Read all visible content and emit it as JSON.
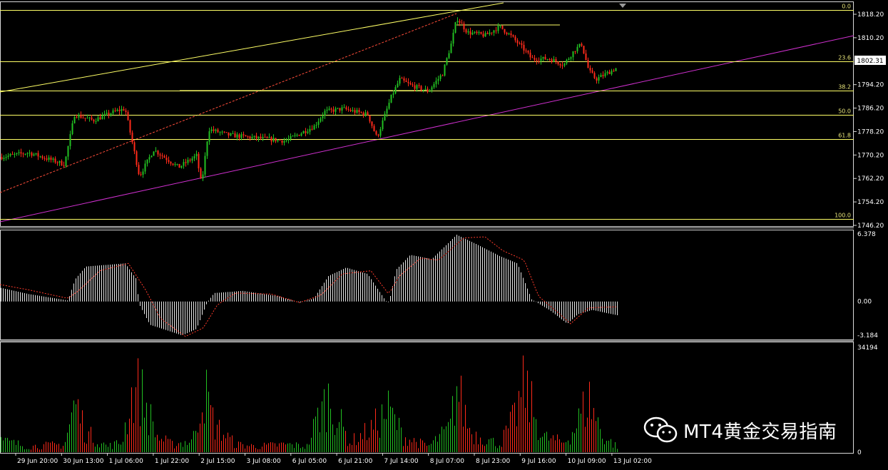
{
  "chart_data": {
    "type": "candlestick",
    "symbol_price_label": "1802.31",
    "price_axis": {
      "ticks": [
        "1818.20",
        "1810.20",
        "1802.31",
        "1794.20",
        "1786.20",
        "1778.20",
        "1770.20",
        "1762.20",
        "1754.20",
        "1746.20"
      ]
    },
    "fibonacci_levels": [
      {
        "label": "0.0",
        "price": 1819.6
      },
      {
        "label": "23.6",
        "price": 1802.2
      },
      {
        "label": "38.2",
        "price": 1792.2
      },
      {
        "label": "50.0",
        "price": 1784.0
      },
      {
        "label": "61.8",
        "price": 1775.7
      },
      {
        "label": "100.0",
        "price": 1748.3
      }
    ],
    "close_path": [
      [
        0,
        1769.5
      ],
      [
        40,
        1771
      ],
      [
        90,
        1767
      ],
      [
        104,
        1784
      ],
      [
        130,
        1782
      ],
      [
        160,
        1785
      ],
      [
        175,
        1786
      ],
      [
        195,
        1763
      ],
      [
        215,
        1772
      ],
      [
        250,
        1766
      ],
      [
        275,
        1770
      ],
      [
        282,
        1760
      ],
      [
        292,
        1779
      ],
      [
        320,
        1777
      ],
      [
        360,
        1776
      ],
      [
        400,
        1775
      ],
      [
        440,
        1780
      ],
      [
        455,
        1785
      ],
      [
        480,
        1786
      ],
      [
        515,
        1784
      ],
      [
        528,
        1776
      ],
      [
        548,
        1790
      ],
      [
        560,
        1796
      ],
      [
        575,
        1794
      ],
      [
        600,
        1792
      ],
      [
        620,
        1798
      ],
      [
        632,
        1808
      ],
      [
        640,
        1817
      ],
      [
        655,
        1812
      ],
      [
        680,
        1811
      ],
      [
        700,
        1814
      ],
      [
        715,
        1811
      ],
      [
        735,
        1806
      ],
      [
        745,
        1803
      ],
      [
        770,
        1803
      ],
      [
        790,
        1801
      ],
      [
        805,
        1806
      ],
      [
        815,
        1808
      ],
      [
        825,
        1799
      ],
      [
        835,
        1796
      ],
      [
        850,
        1798
      ],
      [
        865,
        1800
      ]
    ],
    "macd": {
      "ticks": [
        "6.378",
        "0.00",
        "-3.184"
      ],
      "histogram_path": [
        [
          0,
          1.3
        ],
        [
          40,
          0.7
        ],
        [
          95,
          0.1
        ],
        [
          105,
          2.1
        ],
        [
          120,
          3.3
        ],
        [
          175,
          3.6
        ],
        [
          190,
          2.2
        ],
        [
          195,
          -0.3
        ],
        [
          210,
          -2.2
        ],
        [
          255,
          -3.2
        ],
        [
          275,
          -2.6
        ],
        [
          290,
          -0.1
        ],
        [
          300,
          0.8
        ],
        [
          340,
          1.0
        ],
        [
          390,
          0.5
        ],
        [
          420,
          -0.1
        ],
        [
          440,
          0.3
        ],
        [
          460,
          2.4
        ],
        [
          485,
          3.2
        ],
        [
          515,
          2.6
        ],
        [
          540,
          0.1
        ],
        [
          545,
          -0.1
        ],
        [
          555,
          3.0
        ],
        [
          575,
          4.4
        ],
        [
          605,
          4.0
        ],
        [
          640,
          6.3
        ],
        [
          665,
          5.5
        ],
        [
          700,
          4.3
        ],
        [
          725,
          3.6
        ],
        [
          745,
          0.2
        ],
        [
          770,
          -0.8
        ],
        [
          795,
          -2.1
        ],
        [
          810,
          -1.2
        ],
        [
          830,
          -0.8
        ],
        [
          865,
          -1.3
        ]
      ],
      "signal_path": [
        [
          0,
          1.6
        ],
        [
          40,
          1.1
        ],
        [
          95,
          0.3
        ],
        [
          110,
          1.0
        ],
        [
          140,
          2.9
        ],
        [
          180,
          3.6
        ],
        [
          205,
          1.0
        ],
        [
          225,
          -1.6
        ],
        [
          260,
          -3.3
        ],
        [
          285,
          -2.5
        ],
        [
          305,
          -0.3
        ],
        [
          330,
          0.8
        ],
        [
          380,
          0.7
        ],
        [
          420,
          -0.1
        ],
        [
          450,
          0.6
        ],
        [
          480,
          2.6
        ],
        [
          520,
          2.9
        ],
        [
          545,
          0.7
        ],
        [
          560,
          2.4
        ],
        [
          590,
          4.1
        ],
        [
          615,
          3.9
        ],
        [
          650,
          6.0
        ],
        [
          680,
          6.1
        ],
        [
          705,
          4.8
        ],
        [
          735,
          3.9
        ],
        [
          755,
          0.5
        ],
        [
          785,
          -1.2
        ],
        [
          800,
          -2.1
        ],
        [
          825,
          -0.6
        ],
        [
          865,
          -0.5
        ]
      ]
    },
    "volume": {
      "ticks": [
        "34194",
        "0"
      ],
      "max_value": 34194,
      "envelope_path": [
        [
          0,
          6000
        ],
        [
          40,
          3000
        ],
        [
          90,
          4000
        ],
        [
          105,
          26000
        ],
        [
          120,
          10000
        ],
        [
          150,
          3000
        ],
        [
          170,
          5000
        ],
        [
          185,
          30000
        ],
        [
          195,
          33000
        ],
        [
          220,
          8000
        ],
        [
          240,
          4000
        ],
        [
          270,
          6000
        ],
        [
          285,
          34000
        ],
        [
          300,
          14000
        ],
        [
          330,
          4000
        ],
        [
          360,
          3000
        ],
        [
          400,
          4000
        ],
        [
          430,
          3000
        ],
        [
          445,
          18000
        ],
        [
          460,
          28000
        ],
        [
          490,
          5000
        ],
        [
          520,
          12000
        ],
        [
          545,
          22000
        ],
        [
          565,
          8000
        ],
        [
          600,
          3000
        ],
        [
          630,
          12000
        ],
        [
          640,
          33000
        ],
        [
          660,
          10000
        ],
        [
          700,
          4000
        ],
        [
          720,
          17000
        ],
        [
          735,
          34000
        ],
        [
          760,
          8000
        ],
        [
          790,
          5000
        ],
        [
          805,
          12000
        ],
        [
          825,
          28000
        ],
        [
          845,
          8000
        ],
        [
          865,
          3000
        ]
      ]
    },
    "x_tick_labels": [
      "29 Jun 20:00",
      "30 Jun 13:00",
      "1 Jul 06:00",
      "1 Jul 22:00",
      "2 Jul 15:00",
      "3 Jul 08:00",
      "6 Jul 05:00",
      "6 Jul 21:00",
      "7 Jul 14:00",
      "8 Jul 07:00",
      "8 Jul 23:00",
      "9 Jul 16:00",
      "10 Jul 09:00",
      "13 Jul 02:00"
    ]
  },
  "watermark": {
    "text": "MT4黄金交易指南"
  }
}
